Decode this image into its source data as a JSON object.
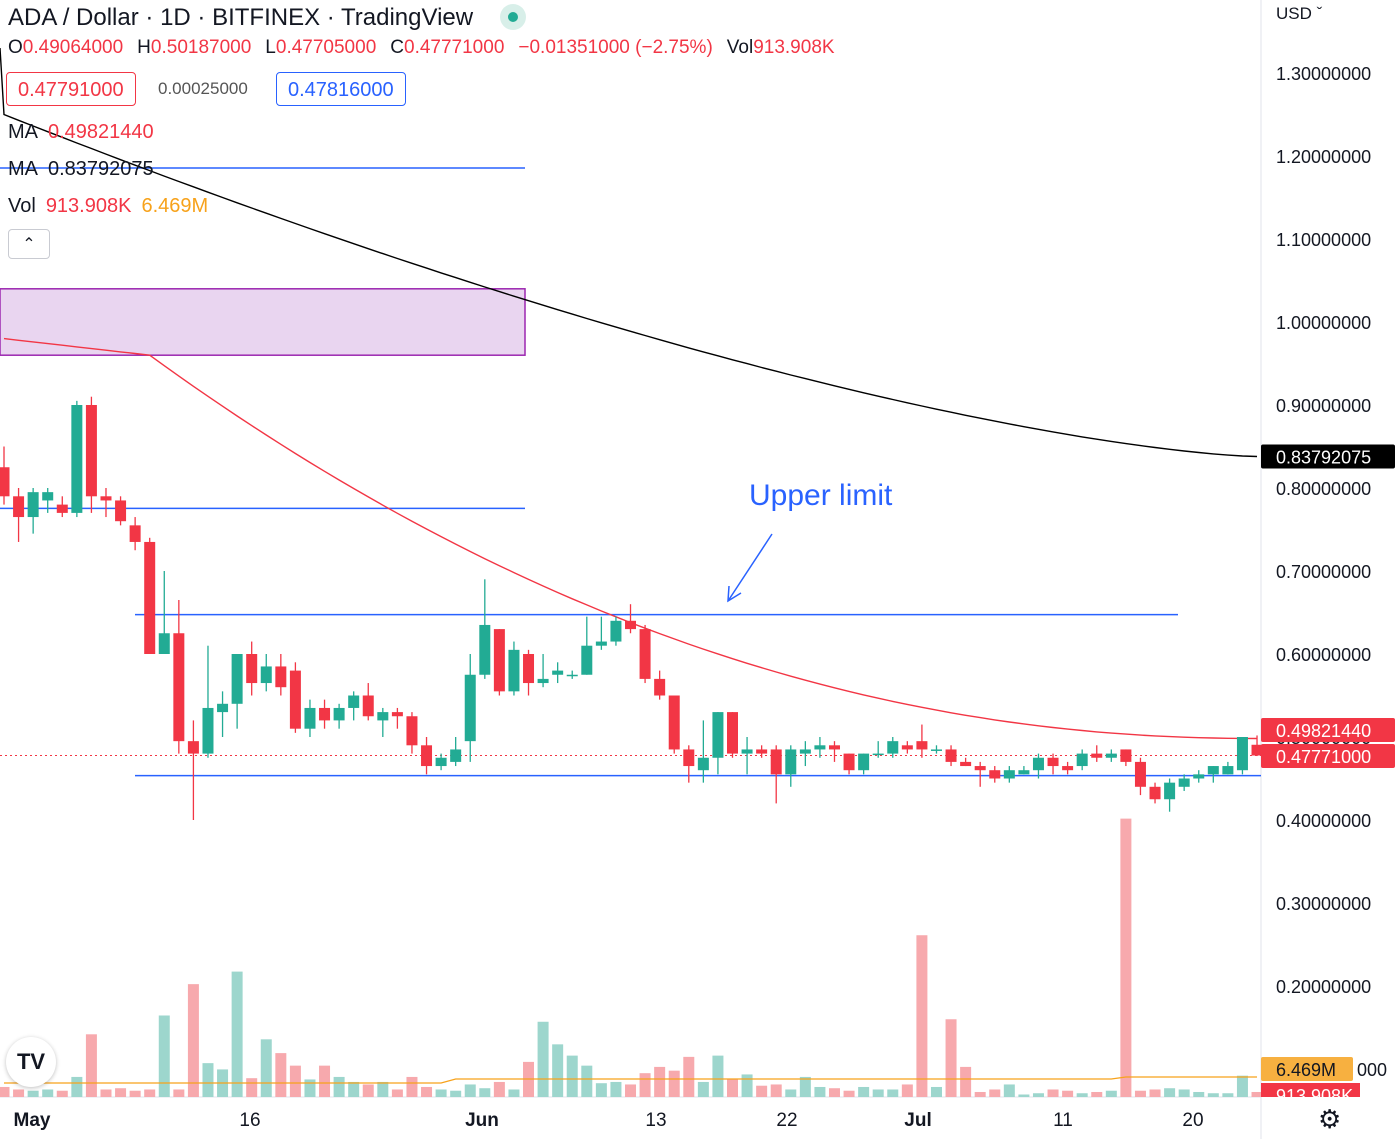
{
  "header": {
    "symbol": "ADA / Dollar",
    "separator": "·",
    "interval": "1D",
    "exchange": "BITFINEX",
    "platform": "TradingView",
    "ohlc": {
      "o_label": "O",
      "o": "0.49064000",
      "h_label": "H",
      "h": "0.50187000",
      "l_label": "L",
      "l": "0.47705000",
      "c_label": "C",
      "c": "0.47771000",
      "change": "−0.01351000 (−2.75%)",
      "vol_label": "Vol",
      "vol": "913.908K"
    },
    "sell_price": "0.47791000",
    "spread": "0.00025000",
    "buy_price": "0.47816000",
    "ma1_label": "MA",
    "ma1_value": "0.49821440",
    "ma2_label": "MA",
    "ma2_value": "0.83792075",
    "vol_ind_label": "Vol",
    "vol_ind_value": "913.908K",
    "vol_ma_value": "6.469M",
    "collapse_icon": "chevron-up-icon"
  },
  "price_axis": {
    "currency": "USD",
    "ticks": [
      "1.30000000",
      "1.20000000",
      "1.10000000",
      "1.00000000",
      "0.90000000",
      "0.80000000",
      "0.70000000",
      "0.60000000",
      "0.50000000",
      "0.40000000",
      "0.30000000",
      "0.20000000"
    ],
    "labels": {
      "ma200": "0.83792075",
      "ma50": "0.49821440",
      "last": "0.47771000",
      "vol_ma": "6.469M",
      "vol_ma_suffix": "000",
      "vol_last": "913.908K"
    }
  },
  "time_axis": {
    "ticks": [
      "May",
      "16",
      "Jun",
      "13",
      "22",
      "Jul",
      "11",
      "20"
    ]
  },
  "annotations": {
    "upper_limit": "Upper limit"
  },
  "colors": {
    "up": "#22ab94",
    "down": "#f23645",
    "ma200": "#000000",
    "ma50": "#f23645",
    "vol_ma": "#f7a21b",
    "level": "#2962ff",
    "zone_fill": "#e9d5f0",
    "zone_border": "#9c27b0"
  },
  "chart_data": {
    "type": "candlestick",
    "interval": "1D",
    "y_range": [
      0.0,
      1.35
    ],
    "candles": [
      {
        "o": 0.825,
        "h": 0.85,
        "l": 0.78,
        "c": 0.79
      },
      {
        "o": 0.79,
        "h": 0.8,
        "l": 0.735,
        "c": 0.765
      },
      {
        "o": 0.765,
        "h": 0.8,
        "l": 0.745,
        "c": 0.795
      },
      {
        "o": 0.785,
        "h": 0.8,
        "l": 0.77,
        "c": 0.795
      },
      {
        "o": 0.78,
        "h": 0.79,
        "l": 0.765,
        "c": 0.77
      },
      {
        "o": 0.77,
        "h": 0.905,
        "l": 0.765,
        "c": 0.9
      },
      {
        "o": 0.9,
        "h": 0.91,
        "l": 0.77,
        "c": 0.79
      },
      {
        "o": 0.79,
        "h": 0.8,
        "l": 0.765,
        "c": 0.785
      },
      {
        "o": 0.785,
        "h": 0.79,
        "l": 0.755,
        "c": 0.76
      },
      {
        "o": 0.755,
        "h": 0.765,
        "l": 0.725,
        "c": 0.735
      },
      {
        "o": 0.735,
        "h": 0.74,
        "l": 0.6,
        "c": 0.6
      },
      {
        "o": 0.6,
        "h": 0.7,
        "l": 0.6,
        "c": 0.625
      },
      {
        "o": 0.625,
        "h": 0.665,
        "l": 0.48,
        "c": 0.495
      },
      {
        "o": 0.495,
        "h": 0.52,
        "l": 0.4,
        "c": 0.48
      },
      {
        "o": 0.48,
        "h": 0.61,
        "l": 0.475,
        "c": 0.535
      },
      {
        "o": 0.53,
        "h": 0.555,
        "l": 0.5,
        "c": 0.54
      },
      {
        "o": 0.54,
        "h": 0.6,
        "l": 0.51,
        "c": 0.6
      },
      {
        "o": 0.6,
        "h": 0.615,
        "l": 0.55,
        "c": 0.565
      },
      {
        "o": 0.565,
        "h": 0.6,
        "l": 0.555,
        "c": 0.585
      },
      {
        "o": 0.585,
        "h": 0.6,
        "l": 0.55,
        "c": 0.56
      },
      {
        "o": 0.58,
        "h": 0.59,
        "l": 0.505,
        "c": 0.51
      },
      {
        "o": 0.51,
        "h": 0.545,
        "l": 0.5,
        "c": 0.535
      },
      {
        "o": 0.535,
        "h": 0.545,
        "l": 0.51,
        "c": 0.52
      },
      {
        "o": 0.52,
        "h": 0.54,
        "l": 0.51,
        "c": 0.535
      },
      {
        "o": 0.535,
        "h": 0.555,
        "l": 0.52,
        "c": 0.55
      },
      {
        "o": 0.55,
        "h": 0.565,
        "l": 0.52,
        "c": 0.525
      },
      {
        "o": 0.52,
        "h": 0.535,
        "l": 0.5,
        "c": 0.53
      },
      {
        "o": 0.53,
        "h": 0.535,
        "l": 0.51,
        "c": 0.525
      },
      {
        "o": 0.525,
        "h": 0.53,
        "l": 0.48,
        "c": 0.49
      },
      {
        "o": 0.49,
        "h": 0.5,
        "l": 0.455,
        "c": 0.465
      },
      {
        "o": 0.465,
        "h": 0.48,
        "l": 0.46,
        "c": 0.475
      },
      {
        "o": 0.47,
        "h": 0.5,
        "l": 0.465,
        "c": 0.485
      },
      {
        "o": 0.495,
        "h": 0.6,
        "l": 0.47,
        "c": 0.575
      },
      {
        "o": 0.575,
        "h": 0.69,
        "l": 0.57,
        "c": 0.635
      },
      {
        "o": 0.63,
        "h": 0.63,
        "l": 0.55,
        "c": 0.555
      },
      {
        "o": 0.555,
        "h": 0.615,
        "l": 0.55,
        "c": 0.605
      },
      {
        "o": 0.6,
        "h": 0.605,
        "l": 0.55,
        "c": 0.565
      },
      {
        "o": 0.565,
        "h": 0.6,
        "l": 0.56,
        "c": 0.57
      },
      {
        "o": 0.575,
        "h": 0.59,
        "l": 0.565,
        "c": 0.58
      },
      {
        "o": 0.575,
        "h": 0.58,
        "l": 0.57,
        "c": 0.575
      },
      {
        "o": 0.575,
        "h": 0.645,
        "l": 0.575,
        "c": 0.61
      },
      {
        "o": 0.61,
        "h": 0.645,
        "l": 0.605,
        "c": 0.615
      },
      {
        "o": 0.615,
        "h": 0.645,
        "l": 0.61,
        "c": 0.64
      },
      {
        "o": 0.64,
        "h": 0.66,
        "l": 0.625,
        "c": 0.63
      },
      {
        "o": 0.63,
        "h": 0.635,
        "l": 0.565,
        "c": 0.57
      },
      {
        "o": 0.57,
        "h": 0.58,
        "l": 0.545,
        "c": 0.55
      },
      {
        "o": 0.55,
        "h": 0.55,
        "l": 0.48,
        "c": 0.485
      },
      {
        "o": 0.485,
        "h": 0.49,
        "l": 0.445,
        "c": 0.465
      },
      {
        "o": 0.46,
        "h": 0.52,
        "l": 0.445,
        "c": 0.475
      },
      {
        "o": 0.475,
        "h": 0.53,
        "l": 0.455,
        "c": 0.53
      },
      {
        "o": 0.53,
        "h": 0.53,
        "l": 0.475,
        "c": 0.48
      },
      {
        "o": 0.48,
        "h": 0.5,
        "l": 0.455,
        "c": 0.485
      },
      {
        "o": 0.485,
        "h": 0.49,
        "l": 0.475,
        "c": 0.48
      },
      {
        "o": 0.485,
        "h": 0.49,
        "l": 0.42,
        "c": 0.455
      },
      {
        "o": 0.455,
        "h": 0.49,
        "l": 0.44,
        "c": 0.485
      },
      {
        "o": 0.48,
        "h": 0.495,
        "l": 0.465,
        "c": 0.485
      },
      {
        "o": 0.485,
        "h": 0.5,
        "l": 0.475,
        "c": 0.49
      },
      {
        "o": 0.49,
        "h": 0.495,
        "l": 0.47,
        "c": 0.485
      },
      {
        "o": 0.48,
        "h": 0.48,
        "l": 0.455,
        "c": 0.46
      },
      {
        "o": 0.46,
        "h": 0.48,
        "l": 0.455,
        "c": 0.48
      },
      {
        "o": 0.48,
        "h": 0.495,
        "l": 0.475,
        "c": 0.48
      },
      {
        "o": 0.48,
        "h": 0.5,
        "l": 0.475,
        "c": 0.495
      },
      {
        "o": 0.49,
        "h": 0.495,
        "l": 0.48,
        "c": 0.485
      },
      {
        "o": 0.495,
        "h": 0.515,
        "l": 0.475,
        "c": 0.485
      },
      {
        "o": 0.485,
        "h": 0.49,
        "l": 0.48,
        "c": 0.485
      },
      {
        "o": 0.485,
        "h": 0.49,
        "l": 0.465,
        "c": 0.47
      },
      {
        "o": 0.47,
        "h": 0.475,
        "l": 0.465,
        "c": 0.465
      },
      {
        "o": 0.465,
        "h": 0.47,
        "l": 0.44,
        "c": 0.46
      },
      {
        "o": 0.46,
        "h": 0.465,
        "l": 0.445,
        "c": 0.45
      },
      {
        "o": 0.45,
        "h": 0.465,
        "l": 0.445,
        "c": 0.46
      },
      {
        "o": 0.455,
        "h": 0.465,
        "l": 0.455,
        "c": 0.46
      },
      {
        "o": 0.46,
        "h": 0.48,
        "l": 0.45,
        "c": 0.475
      },
      {
        "o": 0.475,
        "h": 0.48,
        "l": 0.455,
        "c": 0.465
      },
      {
        "o": 0.465,
        "h": 0.47,
        "l": 0.455,
        "c": 0.46
      },
      {
        "o": 0.465,
        "h": 0.485,
        "l": 0.46,
        "c": 0.48
      },
      {
        "o": 0.48,
        "h": 0.49,
        "l": 0.47,
        "c": 0.475
      },
      {
        "o": 0.475,
        "h": 0.485,
        "l": 0.47,
        "c": 0.48
      },
      {
        "o": 0.485,
        "h": 0.485,
        "l": 0.465,
        "c": 0.47
      },
      {
        "o": 0.47,
        "h": 0.475,
        "l": 0.43,
        "c": 0.44
      },
      {
        "o": 0.44,
        "h": 0.445,
        "l": 0.42,
        "c": 0.425
      },
      {
        "o": 0.425,
        "h": 0.45,
        "l": 0.41,
        "c": 0.445
      },
      {
        "o": 0.44,
        "h": 0.455,
        "l": 0.435,
        "c": 0.45
      },
      {
        "o": 0.45,
        "h": 0.46,
        "l": 0.445,
        "c": 0.455
      },
      {
        "o": 0.455,
        "h": 0.465,
        "l": 0.445,
        "c": 0.465
      },
      {
        "o": 0.455,
        "h": 0.47,
        "l": 0.455,
        "c": 0.465
      },
      {
        "o": 0.46,
        "h": 0.5,
        "l": 0.455,
        "c": 0.5
      },
      {
        "o": 0.49064,
        "h": 0.50187,
        "l": 0.47705,
        "c": 0.47771
      }
    ],
    "volume_relative": [
      0.08,
      0.06,
      0.05,
      0.06,
      0.05,
      0.16,
      0.5,
      0.06,
      0.07,
      0.05,
      0.06,
      0.65,
      0.06,
      0.9,
      0.27,
      0.22,
      1.0,
      0.15,
      0.46,
      0.35,
      0.25,
      0.14,
      0.25,
      0.16,
      0.12,
      0.1,
      0.12,
      0.06,
      0.16,
      0.08,
      0.06,
      0.05,
      0.1,
      0.07,
      0.12,
      0.06,
      0.28,
      0.6,
      0.42,
      0.33,
      0.25,
      0.11,
      0.12,
      0.1,
      0.19,
      0.24,
      0.21,
      0.32,
      0.12,
      0.33,
      0.14,
      0.18,
      0.09,
      0.1,
      0.06,
      0.16,
      0.08,
      0.07,
      0.05,
      0.08,
      0.06,
      0.06,
      0.1,
      1.29,
      0.08,
      0.62,
      0.24,
      0.04,
      0.06,
      0.1,
      0.02,
      0.03,
      0.06,
      0.05,
      0.03,
      0.04,
      0.05,
      2.22,
      0.05,
      0.06,
      0.07,
      0.06,
      0.04,
      0.03,
      0.03,
      0.17,
      0.04
    ],
    "moving_averages": [
      {
        "label": "MA",
        "last": 0.4982144,
        "color": "#f23645"
      },
      {
        "label": "MA",
        "last": 0.83792075,
        "color": "#000000"
      }
    ],
    "horizontal_levels": [
      0.6475,
      0.4535,
      0.7755
    ],
    "zone": {
      "from": 0.96,
      "to": 1.04
    }
  }
}
